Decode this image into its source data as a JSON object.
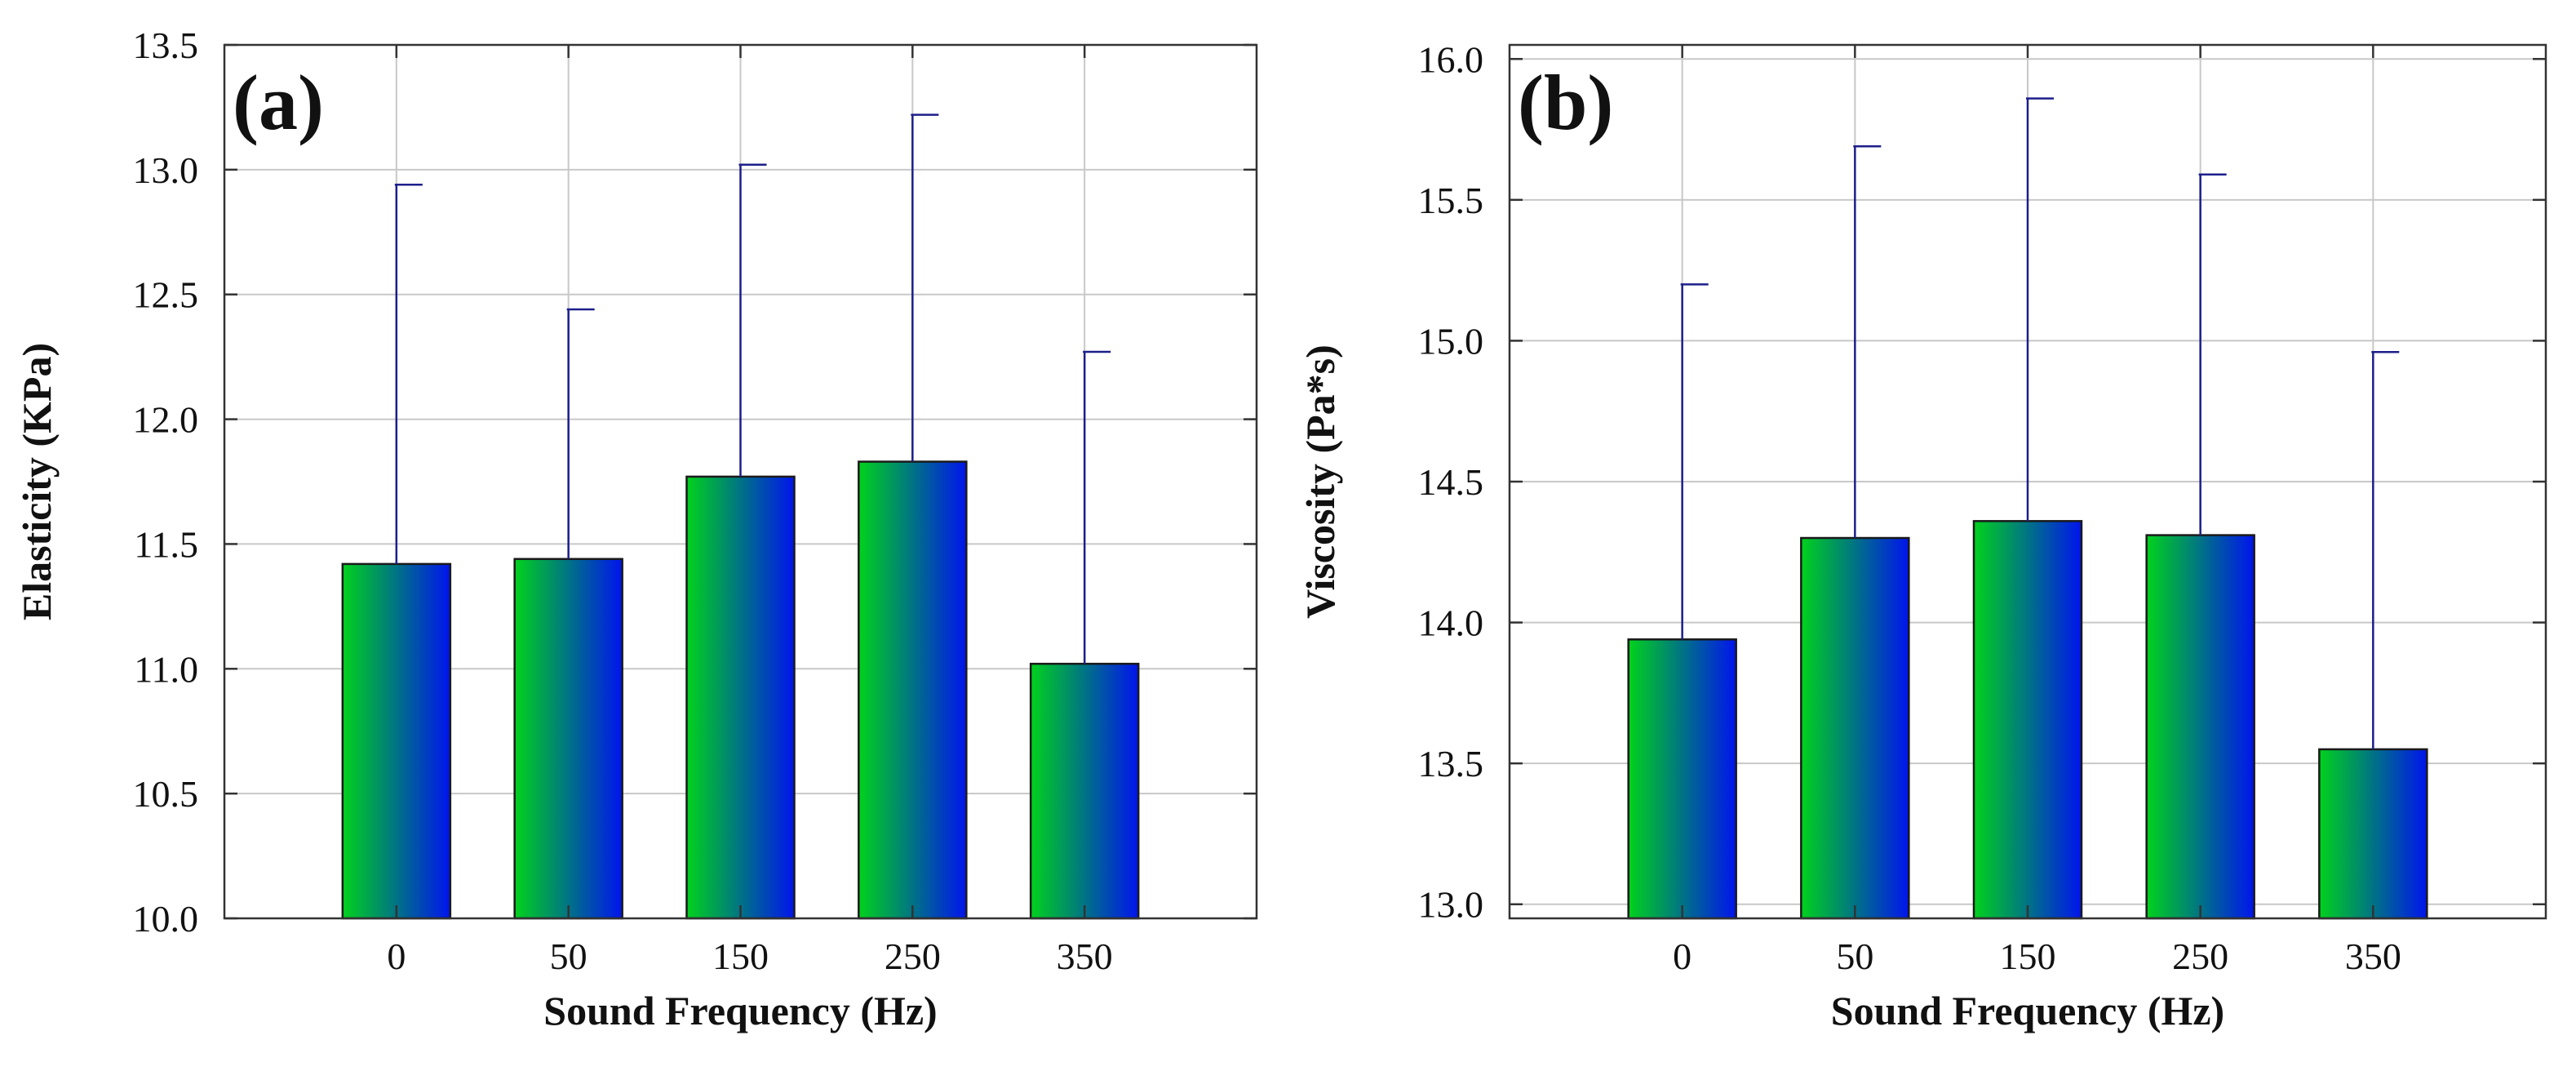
{
  "colors": {
    "bar_gradient_start": "#00d21c",
    "bar_gradient_end": "#0014ee",
    "error_bar": "#1c1f8a",
    "grid": "#c8c8c8",
    "frame": "#333333"
  },
  "chart_data": [
    {
      "type": "bar",
      "panel_label": "(a)",
      "title": "",
      "xlabel": "Sound Frequency (Hz)",
      "ylabel": "Elasticity (KPa)",
      "categories": [
        "0",
        "50",
        "150",
        "250",
        "350"
      ],
      "values": [
        11.42,
        11.44,
        11.77,
        11.83,
        11.02
      ],
      "error_upper": [
        12.94,
        12.44,
        13.02,
        13.22,
        12.27
      ],
      "ylim": [
        10.0,
        13.5
      ],
      "yticks": [
        10.0,
        10.5,
        11.0,
        11.5,
        12.0,
        12.5,
        13.0,
        13.5
      ],
      "ytick_labels": [
        "10.0",
        "10.5",
        "11.0",
        "11.5",
        "12.0",
        "12.5",
        "13.0",
        "13.5"
      ],
      "grid": true
    },
    {
      "type": "bar",
      "panel_label": "(b)",
      "title": "",
      "xlabel": "Sound Frequency (Hz)",
      "ylabel": "Viscosity (Pa*s)",
      "categories": [
        "0",
        "50",
        "150",
        "250",
        "350"
      ],
      "values": [
        13.94,
        14.3,
        14.36,
        14.31,
        13.55
      ],
      "error_upper": [
        15.2,
        15.69,
        15.86,
        15.59,
        14.96
      ],
      "ylim": [
        12.95,
        16.05
      ],
      "yticks": [
        13.0,
        13.5,
        14.0,
        14.5,
        15.0,
        15.5,
        16.0
      ],
      "ytick_labels": [
        "13.0",
        "13.5",
        "14.0",
        "14.5",
        "15.0",
        "15.5",
        "16.0"
      ],
      "grid": true
    }
  ]
}
